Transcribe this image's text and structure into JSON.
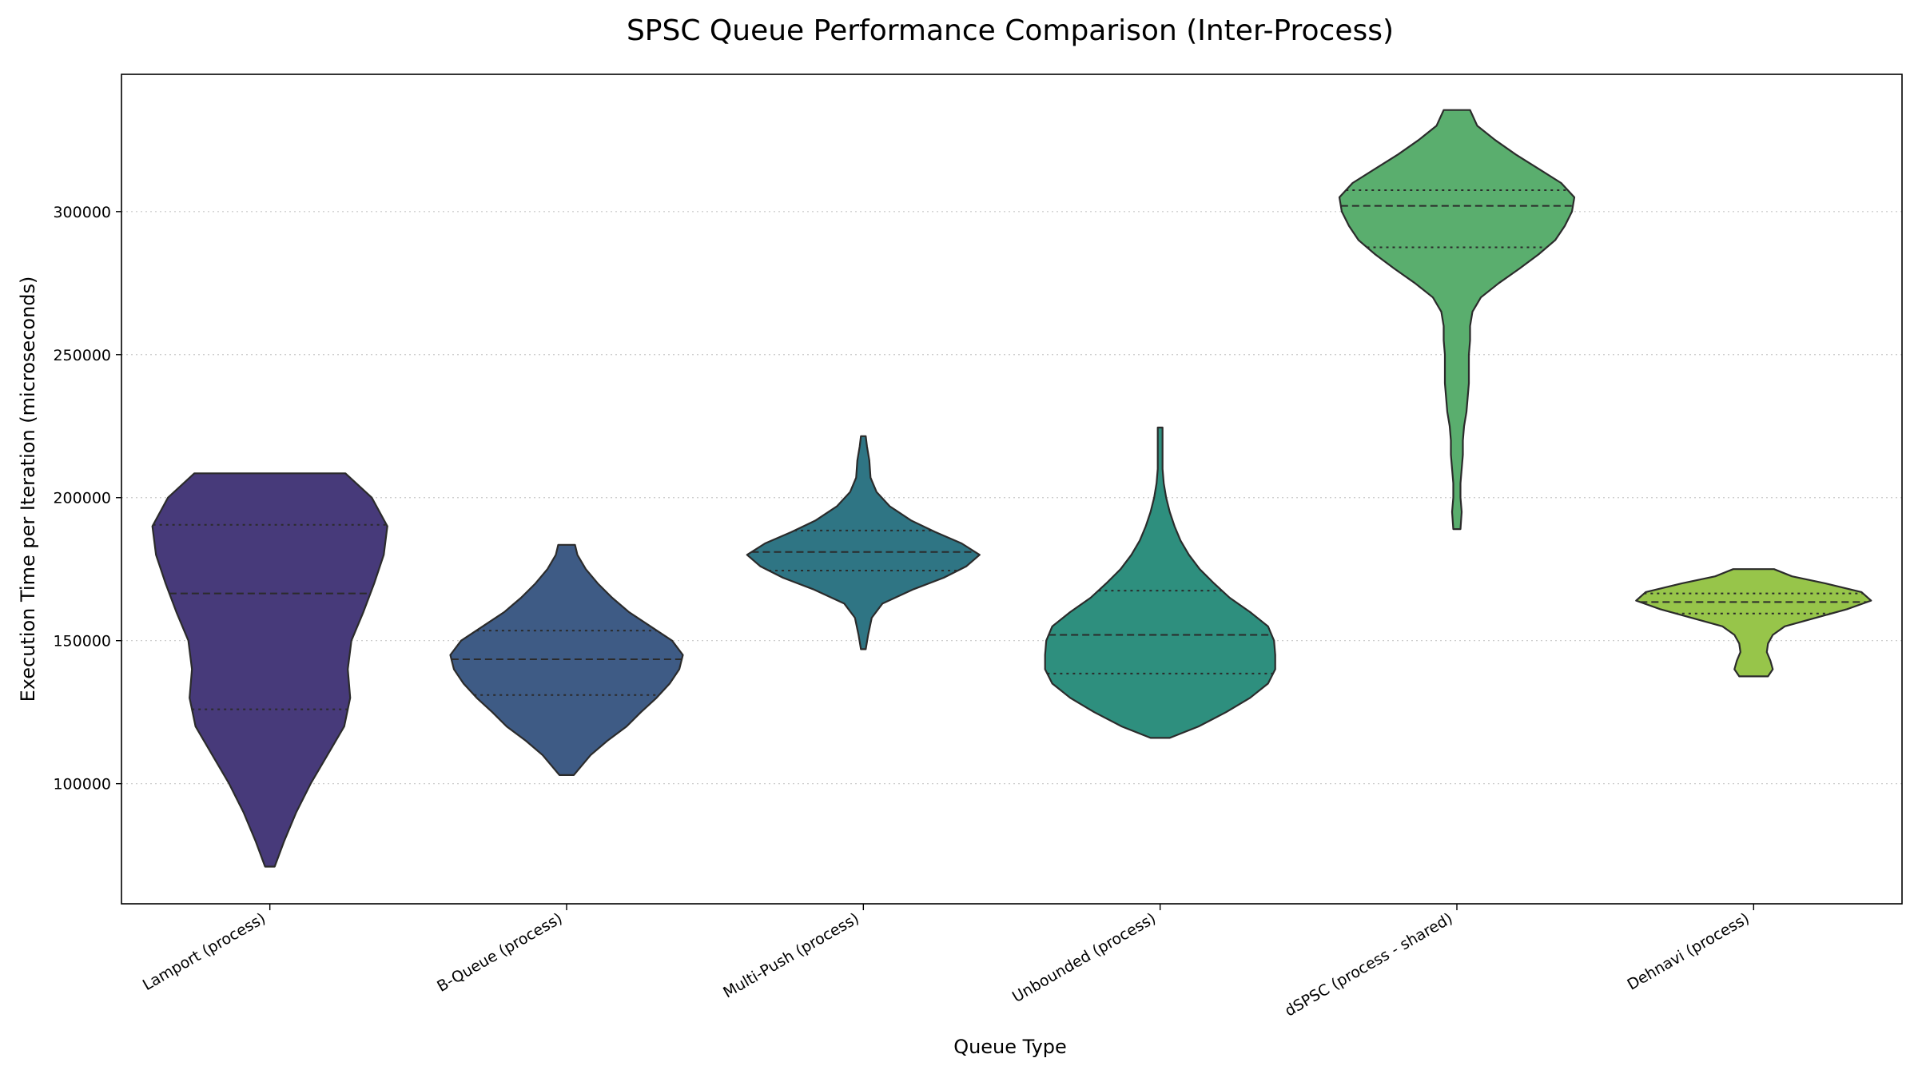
{
  "chart_data": {
    "type": "violin",
    "title": "SPSC Queue Performance Comparison (Inter-Process)",
    "xlabel": "Queue Type",
    "ylabel": "Execution Time per Iteration (microseconds)",
    "ylim": [
      58000,
      348000
    ],
    "yticks": [
      100000,
      150000,
      200000,
      250000,
      300000
    ],
    "ytick_labels": [
      "100000",
      "150000",
      "200000",
      "250000",
      "300000"
    ],
    "grid": "horizontal dotted",
    "inner": "quartile",
    "categories": [
      {
        "name": "Lamport (process)",
        "color": "#473a7a",
        "min": 71000,
        "max": 208500,
        "q1": 126000,
        "median": 166500,
        "q3": 190500,
        "density": [
          [
            71000,
            0.04
          ],
          [
            80000,
            0.12
          ],
          [
            90000,
            0.22
          ],
          [
            100000,
            0.34
          ],
          [
            110000,
            0.48
          ],
          [
            120000,
            0.62
          ],
          [
            130000,
            0.67
          ],
          [
            140000,
            0.65
          ],
          [
            150000,
            0.68
          ],
          [
            160000,
            0.78
          ],
          [
            170000,
            0.87
          ],
          [
            180000,
            0.95
          ],
          [
            190000,
            0.98
          ],
          [
            200000,
            0.85
          ],
          [
            208500,
            0.63
          ]
        ]
      },
      {
        "name": "B-Queue (process)",
        "color": "#3e5b85",
        "min": 103000,
        "max": 183500,
        "q1": 131000,
        "median": 143500,
        "q3": 153500,
        "density": [
          [
            103000,
            0.06
          ],
          [
            110000,
            0.2
          ],
          [
            115000,
            0.34
          ],
          [
            120000,
            0.5
          ],
          [
            125000,
            0.62
          ],
          [
            130000,
            0.75
          ],
          [
            135000,
            0.86
          ],
          [
            140000,
            0.94
          ],
          [
            145000,
            0.97
          ],
          [
            150000,
            0.88
          ],
          [
            155000,
            0.7
          ],
          [
            160000,
            0.52
          ],
          [
            165000,
            0.38
          ],
          [
            170000,
            0.26
          ],
          [
            175000,
            0.16
          ],
          [
            180000,
            0.09
          ],
          [
            183500,
            0.07
          ]
        ]
      },
      {
        "name": "Multi-Push (process)",
        "color": "#2f7584",
        "min": 147000,
        "max": 221500,
        "q1": 174500,
        "median": 181000,
        "q3": 188500,
        "density": [
          [
            147000,
            0.02
          ],
          [
            152000,
            0.04
          ],
          [
            158000,
            0.07
          ],
          [
            163000,
            0.16
          ],
          [
            168000,
            0.42
          ],
          [
            172000,
            0.67
          ],
          [
            176000,
            0.86
          ],
          [
            180000,
            0.97
          ],
          [
            184000,
            0.82
          ],
          [
            188000,
            0.6
          ],
          [
            192000,
            0.4
          ],
          [
            197000,
            0.22
          ],
          [
            202000,
            0.11
          ],
          [
            207000,
            0.06
          ],
          [
            213000,
            0.05
          ],
          [
            218000,
            0.03
          ],
          [
            221500,
            0.02
          ]
        ]
      },
      {
        "name": "Unbounded (process)",
        "color": "#2e8f7e",
        "min": 116000,
        "max": 224500,
        "q1": 138500,
        "median": 152000,
        "q3": 167500,
        "density": [
          [
            116000,
            0.08
          ],
          [
            120000,
            0.32
          ],
          [
            125000,
            0.55
          ],
          [
            130000,
            0.75
          ],
          [
            135000,
            0.9
          ],
          [
            140000,
            0.96
          ],
          [
            145000,
            0.96
          ],
          [
            150000,
            0.95
          ],
          [
            155000,
            0.9
          ],
          [
            160000,
            0.75
          ],
          [
            165000,
            0.58
          ],
          [
            170000,
            0.45
          ],
          [
            175000,
            0.33
          ],
          [
            180000,
            0.24
          ],
          [
            185000,
            0.17
          ],
          [
            190000,
            0.12
          ],
          [
            195000,
            0.08
          ],
          [
            200000,
            0.05
          ],
          [
            205000,
            0.03
          ],
          [
            210000,
            0.02
          ],
          [
            215000,
            0.02
          ],
          [
            220000,
            0.02
          ],
          [
            224500,
            0.02
          ]
        ]
      },
      {
        "name": "dSPSC (process - shared)",
        "color": "#5aae6e",
        "min": 189000,
        "max": 335500,
        "q1": 287500,
        "median": 302000,
        "q3": 307500,
        "density": [
          [
            189000,
            0.03
          ],
          [
            195000,
            0.04
          ],
          [
            200000,
            0.03
          ],
          [
            205000,
            0.03
          ],
          [
            210000,
            0.04
          ],
          [
            215000,
            0.05
          ],
          [
            220000,
            0.05
          ],
          [
            225000,
            0.06
          ],
          [
            230000,
            0.08
          ],
          [
            235000,
            0.09
          ],
          [
            240000,
            0.1
          ],
          [
            245000,
            0.1
          ],
          [
            250000,
            0.1
          ],
          [
            255000,
            0.11
          ],
          [
            260000,
            0.11
          ],
          [
            265000,
            0.13
          ],
          [
            270000,
            0.2
          ],
          [
            275000,
            0.35
          ],
          [
            280000,
            0.52
          ],
          [
            285000,
            0.68
          ],
          [
            290000,
            0.82
          ],
          [
            295000,
            0.9
          ],
          [
            300000,
            0.96
          ],
          [
            305000,
            0.98
          ],
          [
            310000,
            0.87
          ],
          [
            315000,
            0.68
          ],
          [
            320000,
            0.49
          ],
          [
            325000,
            0.32
          ],
          [
            330000,
            0.17
          ],
          [
            335500,
            0.11
          ]
        ]
      },
      {
        "name": "Dehnavi (process)",
        "color": "#97c54a",
        "min": 137500,
        "max": 175000,
        "q1": 159500,
        "median": 163500,
        "q3": 166500,
        "density": [
          [
            137500,
            0.12
          ],
          [
            140000,
            0.16
          ],
          [
            143000,
            0.14
          ],
          [
            146000,
            0.11
          ],
          [
            149000,
            0.12
          ],
          [
            152000,
            0.16
          ],
          [
            155000,
            0.26
          ],
          [
            158000,
            0.52
          ],
          [
            161000,
            0.78
          ],
          [
            164000,
            0.98
          ],
          [
            167000,
            0.9
          ],
          [
            170000,
            0.6
          ],
          [
            172500,
            0.32
          ],
          [
            175000,
            0.17
          ]
        ]
      }
    ]
  }
}
